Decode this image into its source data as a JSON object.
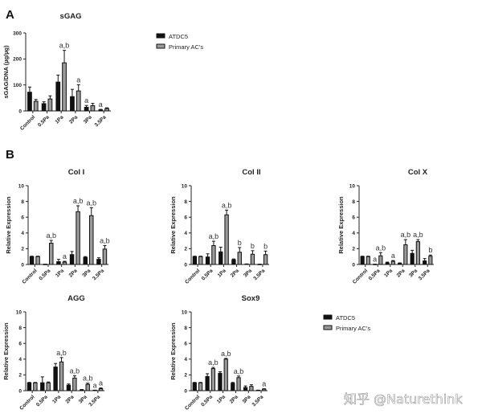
{
  "panels": {
    "A": "A",
    "B": "B"
  },
  "legend": {
    "series": [
      "ATDC5",
      "Primary AC's"
    ],
    "colors": [
      "#111111",
      "#9a9a9a"
    ]
  },
  "watermark": "知乎 @Naturethink",
  "chart_data": [
    {
      "id": "sgag",
      "type": "bar",
      "title": "sGAG",
      "xlabel": "",
      "ylabel": "sGAG/DNA (µg/µg)",
      "ylim": [
        0,
        300
      ],
      "yticks": [
        0,
        100,
        200,
        300
      ],
      "categories": [
        "Control",
        "0.5Pa",
        "1Pa",
        "2Pa",
        "3Pa",
        "3.5Pa"
      ],
      "series": [
        {
          "name": "ATDC5",
          "values": [
            72,
            28,
            111,
            55,
            14,
            4
          ],
          "errors": [
            20,
            7,
            27,
            28,
            7,
            2
          ]
        },
        {
          "name": "Primary AC's",
          "values": [
            37,
            46,
            185,
            77,
            20,
            9
          ],
          "errors": [
            7,
            12,
            48,
            24,
            9,
            3
          ]
        }
      ],
      "annotations": [
        {
          "category": "1Pa",
          "series": "Primary AC's",
          "text": "a,b"
        },
        {
          "category": "2Pa",
          "series": "Primary AC's",
          "text": "a"
        },
        {
          "category": "3Pa",
          "series": "ATDC5",
          "text": "a"
        },
        {
          "category": "3.5Pa",
          "series": "ATDC5",
          "text": "a"
        }
      ],
      "legend": "right"
    },
    {
      "id": "col1",
      "type": "bar",
      "title": "Col I",
      "ylabel": "Relative Expression",
      "ylim": [
        0,
        10
      ],
      "yticks": [
        0,
        2,
        4,
        6,
        8,
        10
      ],
      "categories": [
        "Control",
        "0.5Pa",
        "1Pa",
        "2Pa",
        "3Pa",
        "3.5Pa"
      ],
      "series": [
        {
          "name": "ATDC5",
          "values": [
            1.0,
            0.02,
            0.35,
            1.25,
            0.9,
            0.65
          ],
          "errors": [
            0.05,
            0.01,
            0.3,
            0.4,
            0.1,
            0.2
          ]
        },
        {
          "name": "Primary AC's",
          "values": [
            1.0,
            2.7,
            0.3,
            6.7,
            6.2,
            1.95
          ],
          "errors": [
            0.05,
            0.35,
            0.1,
            0.75,
            1.0,
            0.45
          ]
        }
      ],
      "annotations": [
        {
          "category": "0.5Pa",
          "series": "Primary AC's",
          "text": "a,b"
        },
        {
          "category": "1Pa",
          "series": "Primary AC's",
          "text": "a"
        },
        {
          "category": "2Pa",
          "series": "Primary AC's",
          "text": "a,b"
        },
        {
          "category": "3Pa",
          "series": "Primary AC's",
          "text": "a,b"
        },
        {
          "category": "3.5Pa",
          "series": "Primary AC's",
          "text": "a,b"
        }
      ]
    },
    {
      "id": "col2",
      "type": "bar",
      "title": "Col II",
      "ylabel": "Relative Expression",
      "ylim": [
        0,
        10
      ],
      "yticks": [
        0,
        2,
        4,
        6,
        8,
        10
      ],
      "categories": [
        "Control",
        "0.5Pa",
        "1Pa",
        "2Pa",
        "3Pa",
        "3.5Pa"
      ],
      "series": [
        {
          "name": "ATDC5",
          "values": [
            1.0,
            0.95,
            1.6,
            0.6,
            0.05,
            0.02
          ],
          "errors": [
            0.05,
            0.4,
            0.6,
            0.1,
            0.02,
            0.01
          ]
        },
        {
          "name": "Primary AC's",
          "values": [
            1.0,
            2.4,
            6.3,
            1.55,
            1.3,
            1.25
          ],
          "errors": [
            0.05,
            0.55,
            0.6,
            0.6,
            0.45,
            0.45
          ]
        }
      ],
      "annotations": [
        {
          "category": "0.5Pa",
          "series": "Primary AC's",
          "text": "a,b"
        },
        {
          "category": "1Pa",
          "series": "Primary AC's",
          "text": "a,b"
        },
        {
          "category": "2Pa",
          "series": "Primary AC's",
          "text": "b"
        },
        {
          "category": "3Pa",
          "series": "Primary AC's",
          "text": "b"
        },
        {
          "category": "3.5Pa",
          "series": "Primary AC's",
          "text": "b"
        }
      ]
    },
    {
      "id": "colx",
      "type": "bar",
      "title": "Col X",
      "ylabel": "Relative Expression",
      "ylim": [
        0,
        10
      ],
      "yticks": [
        0,
        2,
        4,
        6,
        8,
        10
      ],
      "categories": [
        "Control",
        "0.5Pa",
        "1Pa",
        "2Pa",
        "3Pa",
        "3.5Pa"
      ],
      "series": [
        {
          "name": "ATDC5",
          "values": [
            1.0,
            0.02,
            0.2,
            0.15,
            1.4,
            0.45
          ],
          "errors": [
            0.05,
            0.01,
            0.1,
            0.05,
            0.4,
            0.3
          ]
        },
        {
          "name": "Primary AC's",
          "values": [
            1.0,
            1.1,
            0.4,
            2.5,
            2.9,
            1.05
          ],
          "errors": [
            0.05,
            0.4,
            0.1,
            0.65,
            0.25,
            0.15
          ]
        }
      ],
      "annotations": [
        {
          "category": "0.5Pa",
          "series": "ATDC5",
          "text": "a"
        },
        {
          "category": "0.5Pa",
          "series": "Primary AC's",
          "text": "a,b"
        },
        {
          "category": "1Pa",
          "series": "Primary AC's",
          "text": "a"
        },
        {
          "category": "2Pa",
          "series": "Primary AC's",
          "text": "a,b"
        },
        {
          "category": "3Pa",
          "series": "Primary AC's",
          "text": "a,b"
        },
        {
          "category": "3.5Pa",
          "series": "Primary AC's",
          "text": "b"
        }
      ]
    },
    {
      "id": "agg",
      "type": "bar",
      "title": "AGG",
      "ylabel": "Relative Expression",
      "ylim": [
        0,
        10
      ],
      "yticks": [
        0,
        2,
        4,
        6,
        8,
        10
      ],
      "categories": [
        "Control",
        "0.5Pa",
        "1Pa",
        "2Pa",
        "3Pa",
        "3.5Pa"
      ],
      "series": [
        {
          "name": "ATDC5",
          "values": [
            1.0,
            1.0,
            3.0,
            0.7,
            0.1,
            0.05
          ],
          "errors": [
            0.05,
            0.75,
            0.45,
            0.15,
            0.05,
            0.02
          ]
        },
        {
          "name": "Primary AC's",
          "values": [
            1.0,
            1.0,
            3.65,
            1.6,
            0.8,
            0.25
          ],
          "errors": [
            0.05,
            0.1,
            0.55,
            0.3,
            0.15,
            0.1
          ]
        }
      ],
      "annotations": [
        {
          "category": "1Pa",
          "series": "Primary AC's",
          "text": "a,b"
        },
        {
          "category": "2Pa",
          "series": "Primary AC's",
          "text": "a,b"
        },
        {
          "category": "3Pa",
          "series": "Primary AC's",
          "text": "a,b"
        },
        {
          "category": "3.5Pa",
          "series": "ATDC5",
          "text": "a"
        },
        {
          "category": "3.5Pa",
          "series": "Primary AC's",
          "text": "a"
        }
      ]
    },
    {
      "id": "sox9",
      "type": "bar",
      "title": "Sox9",
      "ylabel": "Relative Expression",
      "ylim": [
        0,
        10
      ],
      "yticks": [
        0,
        2,
        4,
        6,
        8,
        10
      ],
      "categories": [
        "Control",
        "0.5Pa",
        "1Pa",
        "2Pa",
        "3Pa",
        "3.5Pa"
      ],
      "series": [
        {
          "name": "ATDC5",
          "values": [
            1.0,
            1.8,
            2.2,
            0.95,
            0.4,
            0.05
          ],
          "errors": [
            0.05,
            0.35,
            0.2,
            0.1,
            0.2,
            0.02
          ]
        },
        {
          "name": "Primary AC's",
          "values": [
            1.0,
            2.8,
            4.0,
            1.65,
            0.55,
            0.2
          ],
          "errors": [
            0.05,
            0.15,
            0.1,
            0.2,
            0.2,
            0.05
          ]
        }
      ],
      "annotations": [
        {
          "category": "0.5Pa",
          "series": "Primary AC's",
          "text": "a,b"
        },
        {
          "category": "1Pa",
          "series": "Primary AC's",
          "text": "a,b"
        },
        {
          "category": "2Pa",
          "series": "Primary AC's",
          "text": "a,b"
        },
        {
          "category": "3.5Pa",
          "series": "Primary AC's",
          "text": "a"
        }
      ]
    }
  ]
}
